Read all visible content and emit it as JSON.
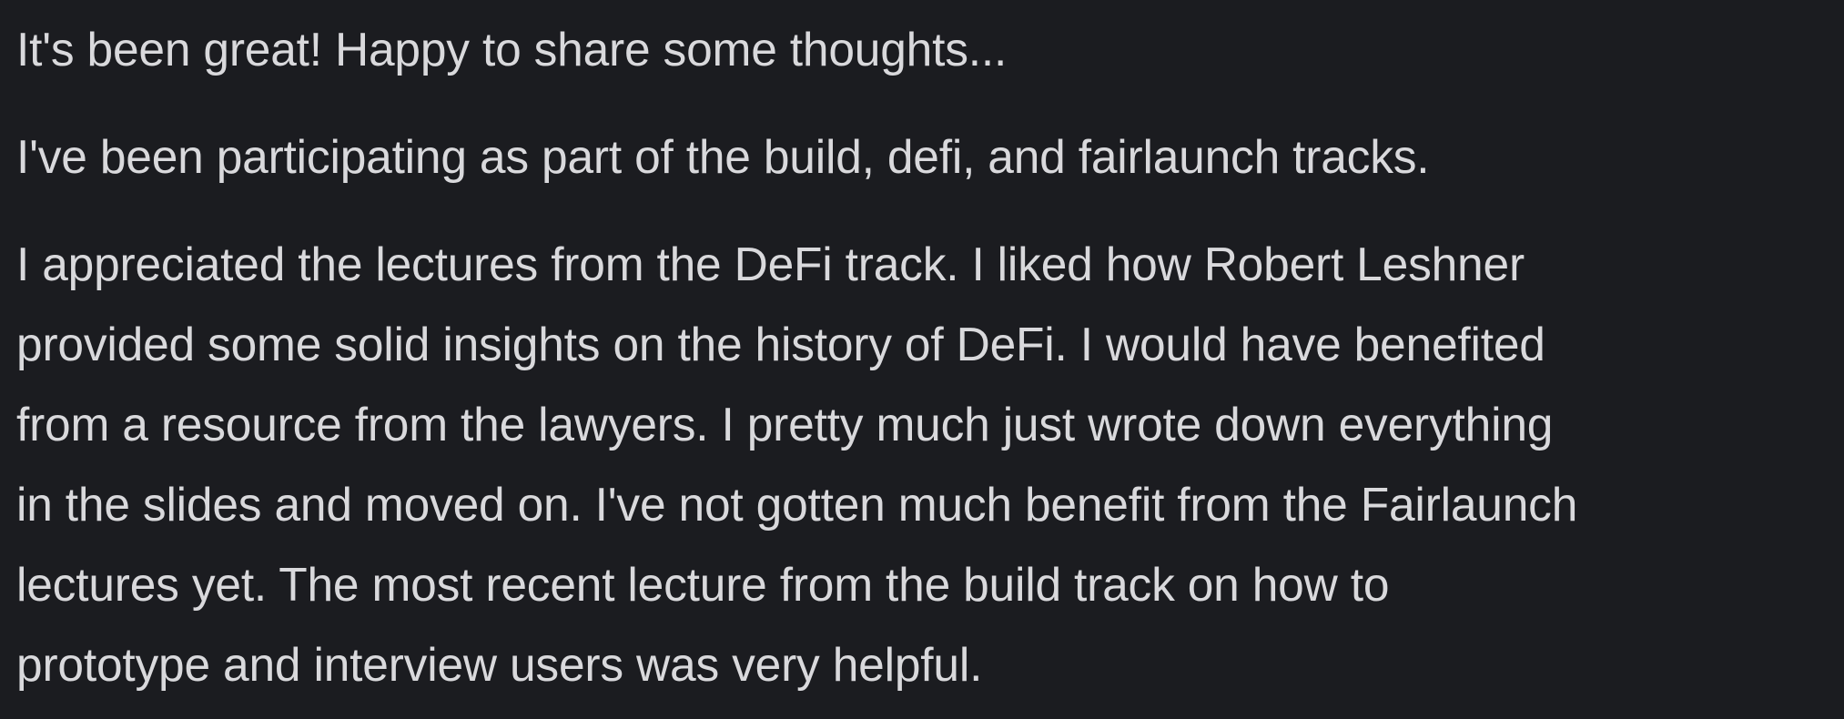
{
  "message": {
    "paragraphs": [
      "It's been great! Happy to share some thoughts...",
      "I've been participating as part of the build, defi, and fairlaunch tracks."
    ],
    "paragraph_3_lines": [
      "I appreciated the lectures from the DeFi track. I liked how Robert Leshner",
      "provided some solid insights on the history of DeFi. I would have benefited",
      "from a resource from the lawyers. I pretty much just wrote down everything",
      "in the slides and moved on. I've not gotten much benefit from the Fairlaunch",
      "lectures yet. The most recent lecture from the build track on how to",
      "prototype and interview users was very helpful."
    ]
  }
}
